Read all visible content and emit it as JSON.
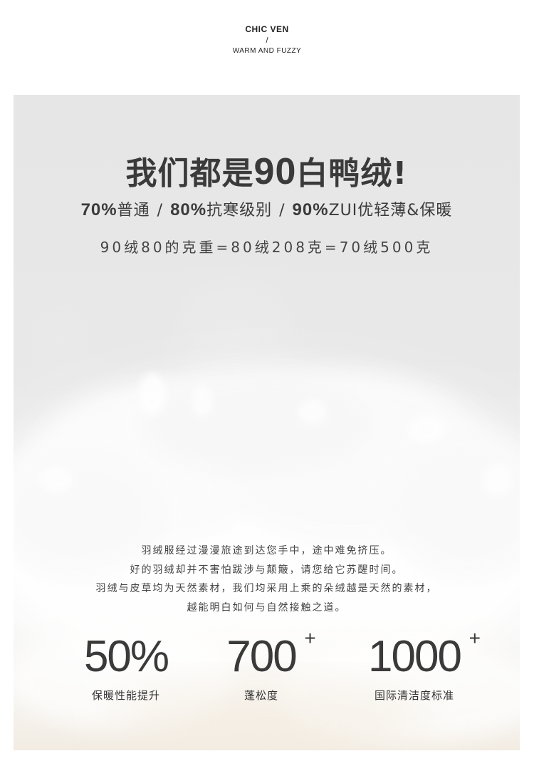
{
  "brand": {
    "name": "CHIC VEN",
    "slash": "/",
    "tagline": "WARM AND FUZZY"
  },
  "headline": {
    "prefix": "我们都是",
    "number": "90",
    "suffix": "白鸭绒!"
  },
  "levels": [
    {
      "percent": "70%",
      "text": "普通"
    },
    {
      "percent": "80%",
      "text": "抗寒级别"
    },
    {
      "percent": "90%",
      "text": "ZUI优轻薄&保暖"
    }
  ],
  "level_separator": "/",
  "comparison": "90绒80的克重=80绒208克=70绒500克",
  "body_lines": [
    "羽绒服经过漫漫旅途到达您手中，途中难免挤压。",
    "好的羽绒却并不害怕跋涉与颠簸，请您给它苏醒时间。",
    "羽绒与皮草均为天然素材，我们均采用上乘的朵绒越是天然的素材，",
    "越能明白如何与自然接触之道。"
  ],
  "stats": [
    {
      "value": "50%",
      "sup": "",
      "label": "保暖性能提升"
    },
    {
      "value": "700",
      "sup": "+",
      "label": "蓬松度"
    },
    {
      "value": "1000",
      "sup": "+",
      "label": "国际清洁度标准"
    }
  ],
  "colors": {
    "panel_background": "#e6e6e6",
    "text_dark": "#3a3a3a",
    "down_white": "#ffffff"
  },
  "image": {
    "subject": "white-down-feather-cloud"
  }
}
